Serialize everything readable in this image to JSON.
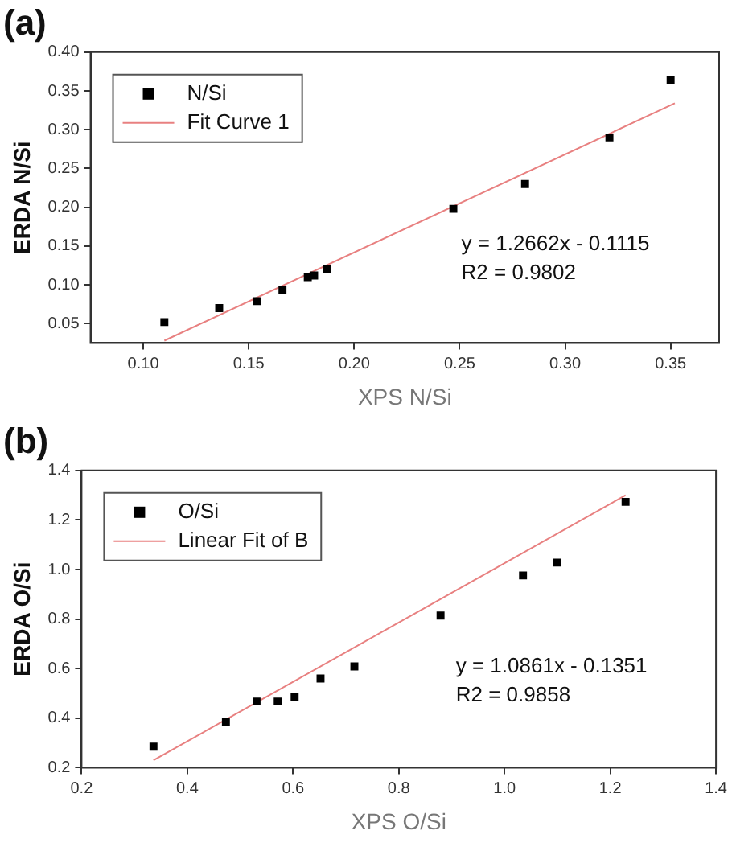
{
  "chart_data": [
    {
      "type": "scatter",
      "title": "(a)",
      "xlabel": "XPS N/Si",
      "ylabel": "ERDA N/Si",
      "xlim": [
        0.075,
        0.373
      ],
      "xticks": [
        {
          "value": 0.1,
          "label": "0.10"
        },
        {
          "value": 0.15,
          "label": "0.15"
        },
        {
          "value": 0.2,
          "label": "0.20"
        },
        {
          "value": 0.25,
          "label": "0.25"
        },
        {
          "value": 0.3,
          "label": "0.30"
        },
        {
          "value": 0.35,
          "label": "0.35"
        }
      ],
      "ylim": [
        0.025,
        0.4
      ],
      "yticks": [
        {
          "value": 0.05,
          "label": "0.05"
        },
        {
          "value": 0.1,
          "label": "0.10"
        },
        {
          "value": 0.15,
          "label": "0.15"
        },
        {
          "value": 0.2,
          "label": "0.20"
        },
        {
          "value": 0.25,
          "label": "0.25"
        },
        {
          "value": 0.3,
          "label": "0.30"
        },
        {
          "value": 0.35,
          "label": "0.35"
        },
        {
          "value": 0.4,
          "label": "0.40"
        }
      ],
      "grid": false,
      "legend": "top left",
      "marker": "square",
      "series": [
        {
          "name": "N/Si",
          "color": "#000000",
          "x": [
            0.11,
            0.136,
            0.154,
            0.166,
            0.178,
            0.181,
            0.187,
            0.247,
            0.281,
            0.321,
            0.35
          ],
          "values": [
            0.052,
            0.07,
            0.079,
            0.093,
            0.11,
            0.112,
            0.12,
            0.198,
            0.23,
            0.29,
            0.364
          ]
        },
        {
          "name": "Fit Curve 1",
          "type": "line",
          "color": "#e88080",
          "marker": "none",
          "x": [
            0.11,
            0.352
          ],
          "values": [
            0.028,
            0.334
          ]
        }
      ],
      "annotations": [
        "y = 1.2662x - 0.1115",
        "R2 = 0.9802"
      ]
    },
    {
      "type": "scatter",
      "title": "(b)",
      "xlabel": "XPS O/Si",
      "ylabel": "ERDA O/Si",
      "xlim": [
        0.2,
        1.4
      ],
      "xticks": [
        0.2,
        0.4,
        0.6,
        0.8,
        {
          "value": 1,
          "label": "1.0"
        },
        1.2,
        1.4
      ],
      "ylim": [
        0.2,
        1.4
      ],
      "yticks": [
        0.2,
        0.4,
        0.6,
        0.8,
        {
          "value": 1,
          "label": "1.0"
        },
        1.2,
        1.4
      ],
      "grid": false,
      "legend": "top left",
      "marker": "square",
      "series": [
        {
          "name": "O/Si",
          "color": "#000000",
          "x": [
            0.336,
            0.473,
            0.531,
            0.571,
            0.603,
            0.652,
            0.716,
            0.879,
            1.035,
            1.099,
            1.229
          ],
          "values": [
            0.285,
            0.384,
            0.467,
            0.467,
            0.484,
            0.56,
            0.609,
            0.814,
            0.976,
            1.028,
            1.273
          ]
        },
        {
          "name": "Linear Fit of B",
          "type": "line",
          "color": "#e88080",
          "marker": "none",
          "x": [
            0.336,
            1.229
          ],
          "values": [
            0.23,
            1.3
          ]
        }
      ],
      "annotations": [
        "y = 1.0861x - 0.1351",
        "R2 = 0.9858"
      ]
    }
  ]
}
